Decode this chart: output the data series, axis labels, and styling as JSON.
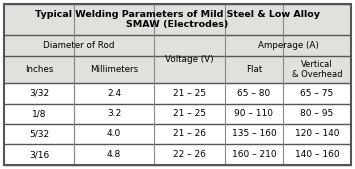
{
  "title_line1": "Typical Welding Parameters of Mild Steel & Low Alloy",
  "title_line2": "SMAW (Electrodes)",
  "group_headers": [
    "Diameter of Rod",
    "Amperage (A)"
  ],
  "volt_label": "Voltage (V)",
  "col_headers": [
    "Inches",
    "Millimeters",
    "Flat",
    "Vertical\n& Overhead"
  ],
  "rows": [
    [
      "3/32",
      "2.4",
      "21 – 25",
      "65 – 80",
      "65 – 75"
    ],
    [
      "1/8",
      "3.2",
      "21 – 25",
      "90 – 110",
      "80 – 95"
    ],
    [
      "5/32",
      "4.0",
      "21 – 26",
      "135 – 160",
      "120 – 140"
    ],
    [
      "3/16",
      "4.8",
      "22 – 26",
      "160 – 210",
      "140 – 160"
    ]
  ],
  "figsize": [
    3.55,
    1.69
  ],
  "dpi": 100,
  "border_color": "#555555",
  "line_color": "#888888",
  "header_bg": "#e0e0dc",
  "white": "#ffffff"
}
